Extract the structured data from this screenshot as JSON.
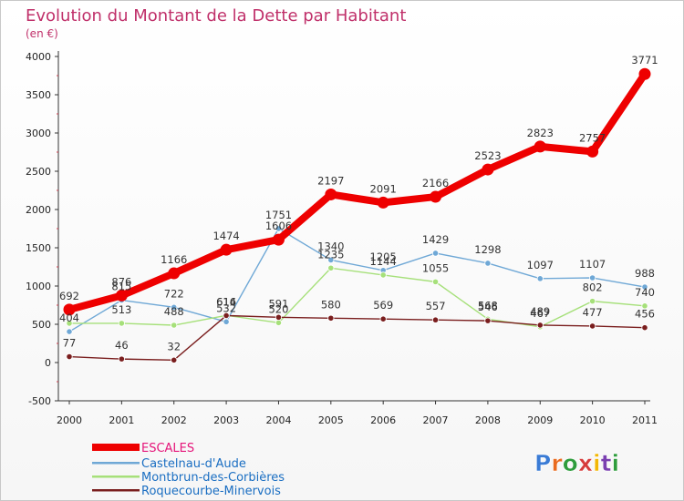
{
  "chart_data": {
    "type": "line",
    "title": "Evolution du Montant de la Dette par Habitant",
    "subtitle": "(en €)",
    "categories": [
      "2000",
      "2001",
      "2002",
      "2003",
      "2004",
      "2005",
      "2006",
      "2007",
      "2008",
      "2009",
      "2010",
      "2011"
    ],
    "ylim": [
      -500,
      4000
    ],
    "yticks": [
      -500,
      0,
      500,
      1000,
      1500,
      2000,
      2500,
      3000,
      3500,
      4000
    ],
    "grid": false,
    "legend_position": "bottom-left",
    "series": [
      {
        "name": "ESCALES",
        "color": "#ee0000",
        "values": [
          692,
          876,
          1166,
          1474,
          1606,
          2197,
          2091,
          2166,
          2523,
          2823,
          2757,
          3771
        ],
        "labels": [
          "692",
          "876",
          "1166",
          "1474",
          "1606",
          "2197",
          "2091",
          "2166",
          "2523",
          "2823",
          "2757",
          "3771"
        ]
      },
      {
        "name": "Castelnau-d'Aude",
        "color": "#6fa8d6",
        "values": [
          404,
          815,
          722,
          532,
          1751,
          1340,
          1205,
          1429,
          1298,
          1097,
          1107,
          988
        ],
        "labels": [
          "404",
          "815",
          "722",
          "532",
          "1751",
          "1340",
          "1205",
          "1429",
          "1298",
          "1097",
          "1107",
          "988"
        ]
      },
      {
        "name": "Montbrun-des-Corbières",
        "color": "#a6e07a",
        "values": [
          513,
          513,
          488,
          616,
          520,
          1235,
          1144,
          1055,
          568,
          467,
          802,
          740
        ],
        "labels": [
          "",
          "513",
          "488",
          "616",
          "520",
          "1235",
          "1144",
          "1055",
          "568",
          "467",
          "802",
          "740"
        ]
      },
      {
        "name": "Roquecourbe-Minervois",
        "color": "#7a1e1e",
        "values": [
          77,
          46,
          32,
          614,
          591,
          580,
          569,
          557,
          546,
          489,
          477,
          456
        ],
        "labels": [
          "77",
          "46",
          "32",
          "614",
          "591",
          "580",
          "569",
          "557",
          "546",
          "489",
          "477",
          "456"
        ]
      }
    ]
  },
  "logo": {
    "text": "Proxiti",
    "colors": [
      "#3a7bd5",
      "#e96b1f",
      "#2e9c3c",
      "#d63b3b",
      "#f2b705",
      "#7a3fb0",
      "#2e9c3c"
    ]
  }
}
